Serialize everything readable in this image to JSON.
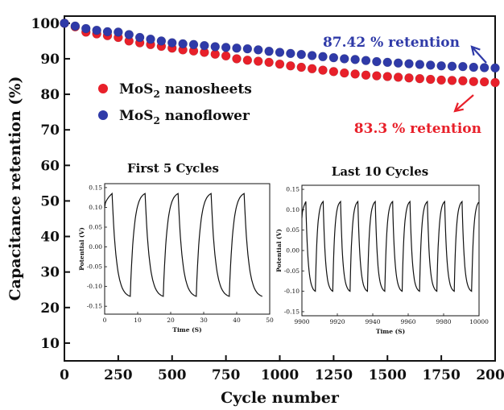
{
  "colors": {
    "nanosheets": "#e8202a",
    "nanoflower": "#2f3aa8",
    "axis": "#111111"
  },
  "chart_data": {
    "type": "scatter",
    "xlabel": "Cycle number",
    "ylabel": "Capacitance retention (%)",
    "xlim": [
      0,
      2000
    ],
    "ylim": [
      5,
      102
    ],
    "xticks": [
      0,
      250,
      500,
      750,
      1000,
      1250,
      1500,
      1750,
      2000
    ],
    "yticks": [
      10,
      20,
      30,
      40,
      50,
      60,
      70,
      80,
      90,
      100
    ],
    "legend": {
      "placement": "upper-left"
    },
    "series": [
      {
        "name_main": "MoS",
        "name_sub": "2",
        "name_tail": " nanosheets",
        "color_key": "nanosheets",
        "x": [
          0,
          50,
          100,
          150,
          200,
          250,
          300,
          350,
          400,
          450,
          500,
          550,
          600,
          650,
          700,
          750,
          800,
          850,
          900,
          950,
          1000,
          1050,
          1100,
          1150,
          1200,
          1250,
          1300,
          1350,
          1400,
          1450,
          1500,
          1550,
          1600,
          1650,
          1700,
          1750,
          1800,
          1850,
          1900,
          1950,
          2000
        ],
        "y": [
          100,
          99,
          97.5,
          97,
          96.5,
          96,
          95,
          94.5,
          94,
          93.5,
          93,
          92.5,
          92.2,
          91.8,
          91.3,
          90.8,
          90,
          89.6,
          89.3,
          89,
          88.5,
          88,
          87.6,
          87.2,
          86.8,
          86.4,
          86,
          85.7,
          85.4,
          85.2,
          85,
          84.8,
          84.6,
          84.4,
          84.2,
          84,
          83.9,
          83.8,
          83.6,
          83.5,
          83.3
        ]
      },
      {
        "name_main": "MoS",
        "name_sub": "2",
        "name_tail": " nanoflower",
        "color_key": "nanoflower",
        "x": [
          0,
          50,
          100,
          150,
          200,
          250,
          300,
          350,
          400,
          450,
          500,
          550,
          600,
          650,
          700,
          750,
          800,
          850,
          900,
          950,
          1000,
          1050,
          1100,
          1150,
          1200,
          1250,
          1300,
          1350,
          1400,
          1450,
          1500,
          1550,
          1600,
          1650,
          1700,
          1750,
          1800,
          1850,
          1900,
          1950,
          2000
        ],
        "y": [
          100,
          99.2,
          98.5,
          98,
          97.6,
          97.5,
          96.8,
          96,
          95.5,
          95,
          94.5,
          94.2,
          94,
          93.7,
          93.4,
          93.2,
          93,
          92.8,
          92.5,
          92.1,
          91.8,
          91.5,
          91.2,
          90.9,
          90.6,
          90.3,
          90,
          89.8,
          89.5,
          89.2,
          89,
          88.8,
          88.6,
          88.4,
          88.2,
          88,
          87.9,
          87.8,
          87.6,
          87.5,
          87.42
        ]
      }
    ],
    "annotations": [
      {
        "text": "87.42 % retention",
        "color_key": "nanoflower"
      },
      {
        "text": "83.3 % retention",
        "color_key": "nanosheets"
      }
    ],
    "insets": [
      {
        "title": "First  5 Cycles",
        "xlabel": "Time (S)",
        "ylabel": "Potential (V)",
        "xlim": [
          0,
          50
        ],
        "ylim": [
          -0.17,
          0.16
        ],
        "xticks": [
          0,
          10,
          20,
          30,
          40,
          50
        ],
        "yticks": [
          -0.15,
          -0.1,
          -0.05,
          0.0,
          0.05,
          0.1,
          0.15
        ],
        "ytick_labels": [
          "-0.15",
          "-0.10",
          "-0.05",
          "0.00",
          "0.05",
          "0.10",
          "0.15"
        ],
        "cycle_start": 0,
        "cycle_period": 10,
        "cycles": 5,
        "v_min": -0.125,
        "v_max": 0.135,
        "v_start": 0.1,
        "v_end": -0.125
      },
      {
        "title": "Last 10 Cycles",
        "xlabel": "Time (S)",
        "ylabel": "Potential (V)",
        "xlim": [
          9900,
          10000
        ],
        "ylim": [
          -0.16,
          0.16
        ],
        "xticks": [
          9900,
          9920,
          9940,
          9960,
          9980,
          10000
        ],
        "yticks": [
          -0.15,
          -0.1,
          -0.05,
          0.0,
          0.05,
          0.1,
          0.15
        ],
        "ytick_labels": [
          "-0.15",
          "-0.10",
          "-0.05",
          "0.00",
          "0.05",
          "0.10",
          "0.15"
        ],
        "cycle_start": 9900,
        "cycle_period": 9.8,
        "cycles": 10,
        "v_min": -0.1,
        "v_max": 0.12,
        "v_start": 0.08,
        "v_end": -0.1
      }
    ]
  }
}
